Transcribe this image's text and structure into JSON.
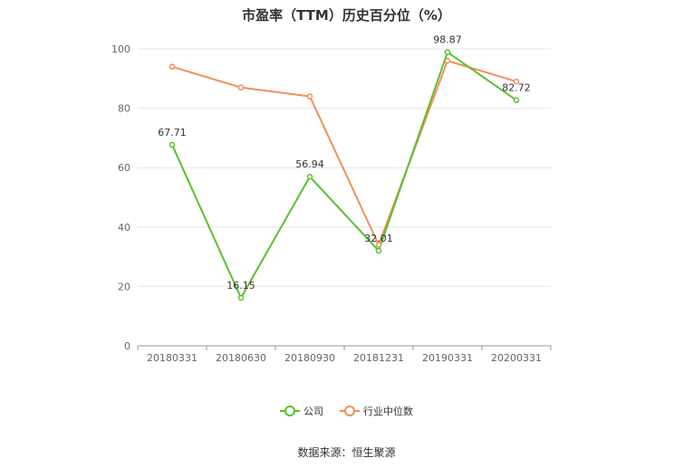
{
  "chart_data": {
    "type": "line",
    "title": "市盈率（TTM）历史百分位（%）",
    "categories": [
      "20180331",
      "20180630",
      "20180930",
      "20181231",
      "20190331",
      "20200331"
    ],
    "series": [
      {
        "name": "公司",
        "values": [
          67.71,
          16.15,
          56.94,
          32.01,
          98.87,
          82.72
        ],
        "color": "#5ac12f",
        "labels": [
          "67.71",
          "16.15",
          "56.94",
          "32.01",
          "98.87",
          "82.72"
        ]
      },
      {
        "name": "行业中位数",
        "values": [
          94,
          87,
          84,
          34,
          96,
          89
        ],
        "color": "#f0905a"
      }
    ],
    "ylim": [
      0,
      100
    ],
    "yticks": [
      "0",
      "20",
      "40",
      "60",
      "80",
      "100"
    ],
    "grid": true,
    "legend_position": "bottom",
    "xlabel": "",
    "ylabel": ""
  },
  "source": "数据来源：恒生聚源"
}
